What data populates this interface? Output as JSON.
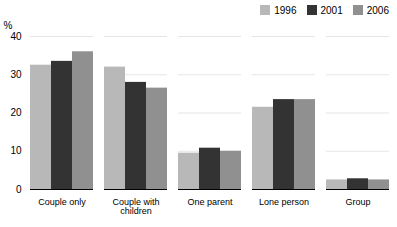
{
  "chart_data": {
    "type": "bar",
    "categories": [
      "Couple only",
      "Couple with children",
      "One parent",
      "Lone person",
      "Group"
    ],
    "series": [
      {
        "name": "1996",
        "color": "#b8b8b8",
        "values": [
          32.5,
          32.0,
          9.5,
          21.5,
          2.5
        ]
      },
      {
        "name": "2001",
        "color": "#333333",
        "values": [
          33.5,
          28.0,
          10.8,
          23.5,
          2.8
        ]
      },
      {
        "name": "2006",
        "color": "#909090",
        "values": [
          36.0,
          26.5,
          10.0,
          23.5,
          2.5
        ]
      }
    ],
    "ylabel": "%",
    "ylim": [
      0,
      40
    ],
    "yticks": [
      0,
      10,
      20,
      30,
      40
    ],
    "grid": true,
    "legend": "upper right"
  }
}
